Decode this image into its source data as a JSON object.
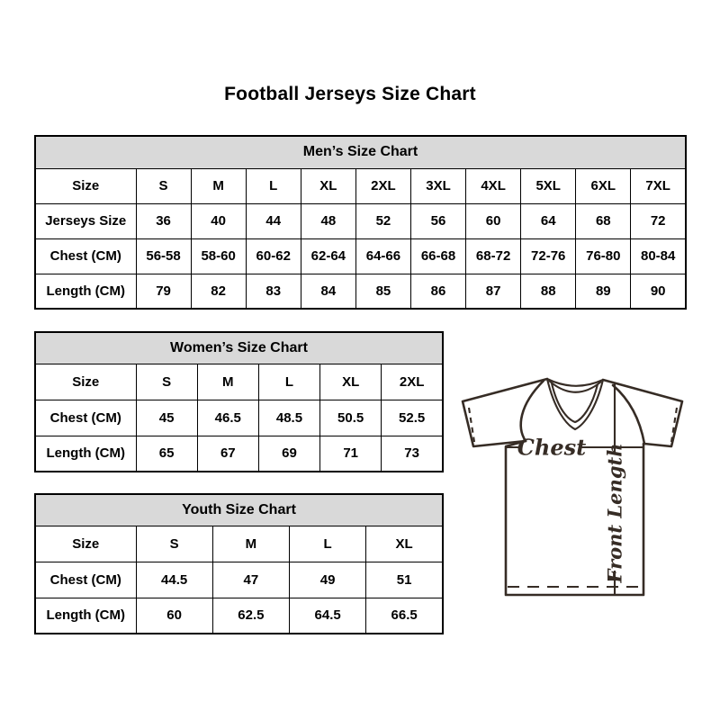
{
  "page": {
    "title": "Football Jerseys Size Chart"
  },
  "tables": [
    {
      "name": "mens-size-table",
      "header": "Men’s Size Chart",
      "rows": [
        [
          "Size",
          "S",
          "M",
          "L",
          "XL",
          "2XL",
          "3XL",
          "4XL",
          "5XL",
          "6XL",
          "7XL"
        ],
        [
          "Jerseys Size",
          "36",
          "40",
          "44",
          "48",
          "52",
          "56",
          "60",
          "64",
          "68",
          "72"
        ],
        [
          "Chest (CM)",
          "56-58",
          "58-60",
          "60-62",
          "62-64",
          "64-66",
          "66-68",
          "68-72",
          "72-76",
          "76-80",
          "80-84"
        ],
        [
          "Length (CM)",
          "79",
          "82",
          "83",
          "84",
          "85",
          "86",
          "87",
          "88",
          "89",
          "90"
        ]
      ]
    },
    {
      "name": "womens-size-table",
      "header": "Women’s Size Chart",
      "rows": [
        [
          "Size",
          "S",
          "M",
          "L",
          "XL",
          "2XL"
        ],
        [
          "Chest (CM)",
          "45",
          "46.5",
          "48.5",
          "50.5",
          "52.5"
        ],
        [
          "Length (CM)",
          "65",
          "67",
          "69",
          "71",
          "73"
        ]
      ]
    },
    {
      "name": "youth-size-table",
      "header": "Youth Size Chart",
      "rows": [
        [
          "Size",
          "S",
          "M",
          "L",
          "XL"
        ],
        [
          "Chest (CM)",
          "44.5",
          "47",
          "49",
          "51"
        ],
        [
          "Length (CM)",
          "60",
          "62.5",
          "64.5",
          "66.5"
        ]
      ]
    }
  ],
  "diagram": {
    "chest_label": "Chest",
    "front_length_label": "Front Length"
  },
  "colors": {
    "background": "#ffffff",
    "table_header_bg": "#d9d9d9",
    "table_border": "#000000",
    "text": "#000000",
    "diagram_line": "#362c25"
  }
}
